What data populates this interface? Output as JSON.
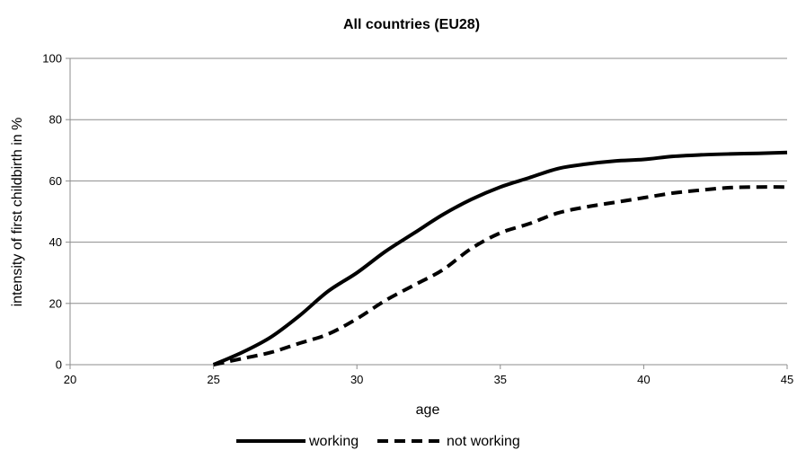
{
  "chart_data": {
    "type": "line",
    "title": "All countries (EU28)",
    "xlabel": "age",
    "ylabel": "intensity of first childbirth in %",
    "xlim": [
      20,
      45
    ],
    "ylim": [
      0,
      100
    ],
    "x_ticks": [
      20,
      25,
      30,
      35,
      40,
      45
    ],
    "y_ticks": [
      0,
      20,
      40,
      60,
      80,
      100
    ],
    "grid": "horizontal",
    "legend_position": "bottom",
    "series": [
      {
        "name": "working",
        "style": "solid",
        "color": "#000000",
        "x": [
          25,
          26,
          27,
          28,
          29,
          30,
          31,
          32,
          33,
          34,
          35,
          36,
          37,
          38,
          39,
          40,
          41,
          42,
          43,
          44,
          45
        ],
        "y": [
          0,
          4,
          9,
          16,
          24,
          30,
          37,
          43,
          49,
          54,
          58,
          61,
          64,
          65.5,
          66.5,
          67,
          68,
          68.5,
          68.8,
          69,
          69.3
        ]
      },
      {
        "name": "not working",
        "style": "dashed",
        "color": "#000000",
        "x": [
          25,
          26,
          27,
          28,
          29,
          30,
          31,
          32,
          33,
          34,
          35,
          36,
          37,
          38,
          39,
          40,
          41,
          42,
          43,
          44,
          45
        ],
        "y": [
          0,
          2,
          4,
          7,
          10,
          15,
          21,
          26,
          31,
          38,
          43,
          46,
          49.5,
          51.5,
          53,
          54.5,
          56,
          57,
          57.8,
          58,
          58
        ]
      }
    ]
  }
}
